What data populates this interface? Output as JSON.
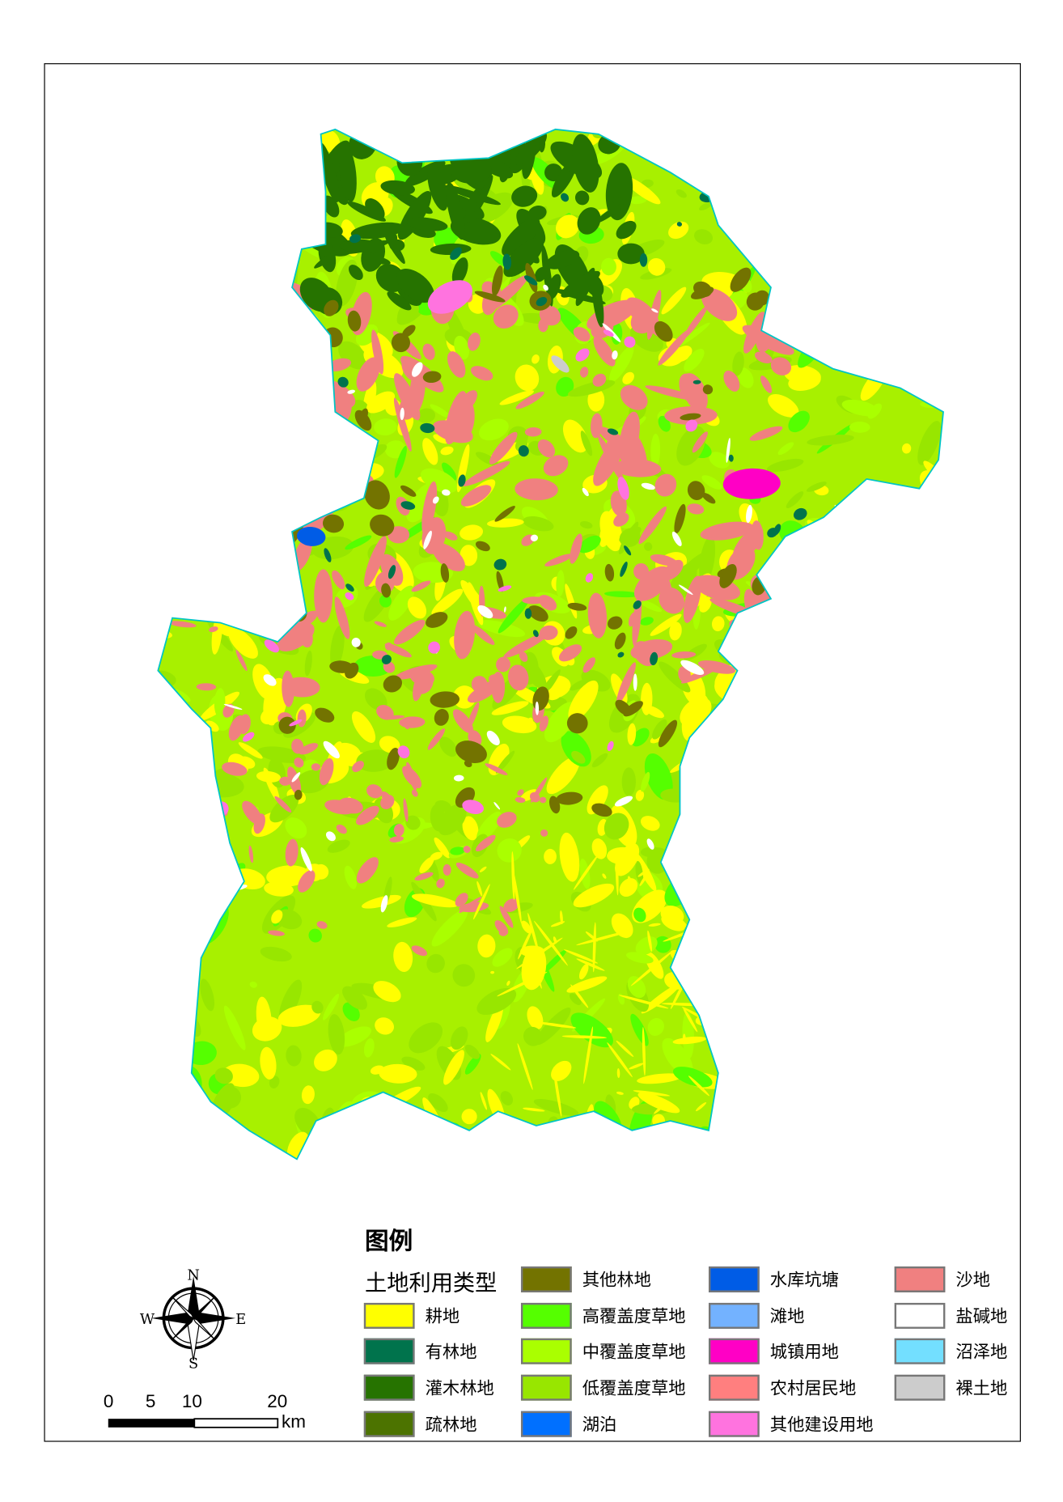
{
  "legend": {
    "title": "图例",
    "subtitle": "土地利用类型",
    "items": [
      {
        "label": "耕地",
        "color": "#ffff00"
      },
      {
        "label": "有林地",
        "color": "#00734c"
      },
      {
        "label": "灌木林地",
        "color": "#267300"
      },
      {
        "label": "疏林地",
        "color": "#4c7300"
      },
      {
        "label": "其他林地",
        "color": "#737300"
      },
      {
        "label": "高覆盖度草地",
        "color": "#55ff00"
      },
      {
        "label": "中覆盖度草地",
        "color": "#aaff00"
      },
      {
        "label": "低覆盖度草地",
        "color": "#98e600"
      },
      {
        "label": "湖泊",
        "color": "#0070ff"
      },
      {
        "label": "水库坑塘",
        "color": "#005ce6"
      },
      {
        "label": "滩地",
        "color": "#73b2ff"
      },
      {
        "label": "城镇用地",
        "color": "#ff00c5"
      },
      {
        "label": "农村居民地",
        "color": "#ff7f7f"
      },
      {
        "label": "其他建设用地",
        "color": "#ff73df"
      },
      {
        "label": "沙地",
        "color": "#f08080"
      },
      {
        "label": "盐碱地",
        "color": "#ffffff"
      },
      {
        "label": "沼泽地",
        "color": "#73dfff"
      },
      {
        "label": "裸土地",
        "color": "#cccccc"
      }
    ]
  },
  "compass": {
    "n": "N",
    "s": "S",
    "e": "E",
    "w": "W"
  },
  "scalebar": {
    "ticks": [
      "0",
      "5",
      "10",
      "20"
    ],
    "unit": "km"
  },
  "boundary_color": "#00c5c5"
}
